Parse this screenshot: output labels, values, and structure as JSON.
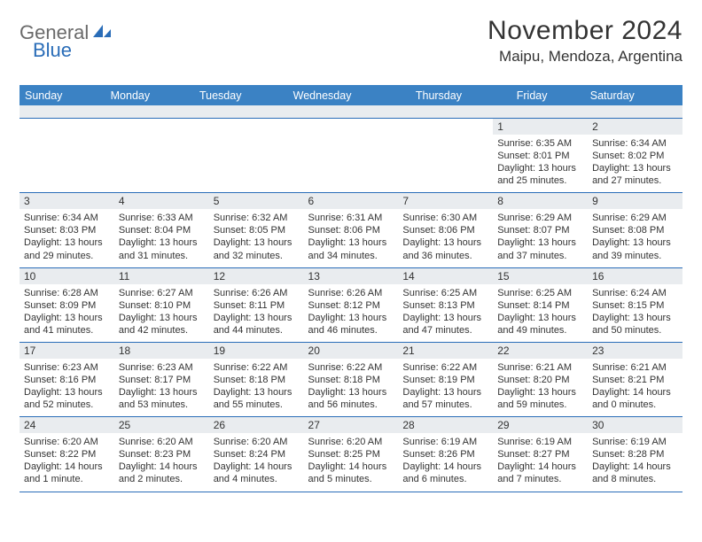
{
  "logo": {
    "part1": "General",
    "part2": "Blue"
  },
  "title": "November 2024",
  "location": "Maipu, Mendoza, Argentina",
  "colors": {
    "header_bg": "#3b82c4",
    "band_bg": "#e9ecef",
    "rule": "#2a6db8",
    "logo_gray": "#6a6a6a",
    "logo_blue": "#2a6db8"
  },
  "dayNames": [
    "Sunday",
    "Monday",
    "Tuesday",
    "Wednesday",
    "Thursday",
    "Friday",
    "Saturday"
  ],
  "weeks": [
    [
      {
        "n": "",
        "sr": "",
        "ss": "",
        "dl": ""
      },
      {
        "n": "",
        "sr": "",
        "ss": "",
        "dl": ""
      },
      {
        "n": "",
        "sr": "",
        "ss": "",
        "dl": ""
      },
      {
        "n": "",
        "sr": "",
        "ss": "",
        "dl": ""
      },
      {
        "n": "",
        "sr": "",
        "ss": "",
        "dl": ""
      },
      {
        "n": "1",
        "sr": "Sunrise: 6:35 AM",
        "ss": "Sunset: 8:01 PM",
        "dl": "Daylight: 13 hours and 25 minutes."
      },
      {
        "n": "2",
        "sr": "Sunrise: 6:34 AM",
        "ss": "Sunset: 8:02 PM",
        "dl": "Daylight: 13 hours and 27 minutes."
      }
    ],
    [
      {
        "n": "3",
        "sr": "Sunrise: 6:34 AM",
        "ss": "Sunset: 8:03 PM",
        "dl": "Daylight: 13 hours and 29 minutes."
      },
      {
        "n": "4",
        "sr": "Sunrise: 6:33 AM",
        "ss": "Sunset: 8:04 PM",
        "dl": "Daylight: 13 hours and 31 minutes."
      },
      {
        "n": "5",
        "sr": "Sunrise: 6:32 AM",
        "ss": "Sunset: 8:05 PM",
        "dl": "Daylight: 13 hours and 32 minutes."
      },
      {
        "n": "6",
        "sr": "Sunrise: 6:31 AM",
        "ss": "Sunset: 8:06 PM",
        "dl": "Daylight: 13 hours and 34 minutes."
      },
      {
        "n": "7",
        "sr": "Sunrise: 6:30 AM",
        "ss": "Sunset: 8:06 PM",
        "dl": "Daylight: 13 hours and 36 minutes."
      },
      {
        "n": "8",
        "sr": "Sunrise: 6:29 AM",
        "ss": "Sunset: 8:07 PM",
        "dl": "Daylight: 13 hours and 37 minutes."
      },
      {
        "n": "9",
        "sr": "Sunrise: 6:29 AM",
        "ss": "Sunset: 8:08 PM",
        "dl": "Daylight: 13 hours and 39 minutes."
      }
    ],
    [
      {
        "n": "10",
        "sr": "Sunrise: 6:28 AM",
        "ss": "Sunset: 8:09 PM",
        "dl": "Daylight: 13 hours and 41 minutes."
      },
      {
        "n": "11",
        "sr": "Sunrise: 6:27 AM",
        "ss": "Sunset: 8:10 PM",
        "dl": "Daylight: 13 hours and 42 minutes."
      },
      {
        "n": "12",
        "sr": "Sunrise: 6:26 AM",
        "ss": "Sunset: 8:11 PM",
        "dl": "Daylight: 13 hours and 44 minutes."
      },
      {
        "n": "13",
        "sr": "Sunrise: 6:26 AM",
        "ss": "Sunset: 8:12 PM",
        "dl": "Daylight: 13 hours and 46 minutes."
      },
      {
        "n": "14",
        "sr": "Sunrise: 6:25 AM",
        "ss": "Sunset: 8:13 PM",
        "dl": "Daylight: 13 hours and 47 minutes."
      },
      {
        "n": "15",
        "sr": "Sunrise: 6:25 AM",
        "ss": "Sunset: 8:14 PM",
        "dl": "Daylight: 13 hours and 49 minutes."
      },
      {
        "n": "16",
        "sr": "Sunrise: 6:24 AM",
        "ss": "Sunset: 8:15 PM",
        "dl": "Daylight: 13 hours and 50 minutes."
      }
    ],
    [
      {
        "n": "17",
        "sr": "Sunrise: 6:23 AM",
        "ss": "Sunset: 8:16 PM",
        "dl": "Daylight: 13 hours and 52 minutes."
      },
      {
        "n": "18",
        "sr": "Sunrise: 6:23 AM",
        "ss": "Sunset: 8:17 PM",
        "dl": "Daylight: 13 hours and 53 minutes."
      },
      {
        "n": "19",
        "sr": "Sunrise: 6:22 AM",
        "ss": "Sunset: 8:18 PM",
        "dl": "Daylight: 13 hours and 55 minutes."
      },
      {
        "n": "20",
        "sr": "Sunrise: 6:22 AM",
        "ss": "Sunset: 8:18 PM",
        "dl": "Daylight: 13 hours and 56 minutes."
      },
      {
        "n": "21",
        "sr": "Sunrise: 6:22 AM",
        "ss": "Sunset: 8:19 PM",
        "dl": "Daylight: 13 hours and 57 minutes."
      },
      {
        "n": "22",
        "sr": "Sunrise: 6:21 AM",
        "ss": "Sunset: 8:20 PM",
        "dl": "Daylight: 13 hours and 59 minutes."
      },
      {
        "n": "23",
        "sr": "Sunrise: 6:21 AM",
        "ss": "Sunset: 8:21 PM",
        "dl": "Daylight: 14 hours and 0 minutes."
      }
    ],
    [
      {
        "n": "24",
        "sr": "Sunrise: 6:20 AM",
        "ss": "Sunset: 8:22 PM",
        "dl": "Daylight: 14 hours and 1 minute."
      },
      {
        "n": "25",
        "sr": "Sunrise: 6:20 AM",
        "ss": "Sunset: 8:23 PM",
        "dl": "Daylight: 14 hours and 2 minutes."
      },
      {
        "n": "26",
        "sr": "Sunrise: 6:20 AM",
        "ss": "Sunset: 8:24 PM",
        "dl": "Daylight: 14 hours and 4 minutes."
      },
      {
        "n": "27",
        "sr": "Sunrise: 6:20 AM",
        "ss": "Sunset: 8:25 PM",
        "dl": "Daylight: 14 hours and 5 minutes."
      },
      {
        "n": "28",
        "sr": "Sunrise: 6:19 AM",
        "ss": "Sunset: 8:26 PM",
        "dl": "Daylight: 14 hours and 6 minutes."
      },
      {
        "n": "29",
        "sr": "Sunrise: 6:19 AM",
        "ss": "Sunset: 8:27 PM",
        "dl": "Daylight: 14 hours and 7 minutes."
      },
      {
        "n": "30",
        "sr": "Sunrise: 6:19 AM",
        "ss": "Sunset: 8:28 PM",
        "dl": "Daylight: 14 hours and 8 minutes."
      }
    ]
  ]
}
